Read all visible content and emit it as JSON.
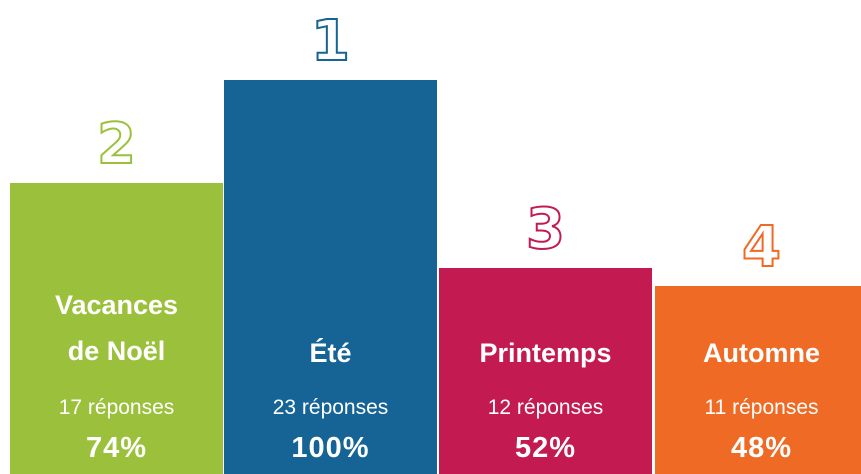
{
  "chart_data": {
    "type": "bar",
    "title": "",
    "categories": [
      "Vacances de Noël",
      "Été",
      "Printemps",
      "Automne"
    ],
    "labels": [
      "Vacances\nde Noël",
      "Été",
      "Printemps",
      "Automne"
    ],
    "values": [
      17,
      23,
      12,
      11
    ],
    "response_texts": [
      "17 réponses",
      "23 réponses",
      "12 réponses",
      "11 réponses"
    ],
    "percent_values": [
      74,
      100,
      52,
      48
    ],
    "percent_texts": [
      "74%",
      "100%",
      "52%",
      "48%"
    ],
    "ranks": [
      "2",
      "1",
      "3",
      "4"
    ],
    "colors": [
      "#9bc13c",
      "#156495",
      "#c21a51",
      "#ef6a24"
    ],
    "ylim": [
      0,
      23
    ],
    "xlabel": "",
    "ylabel": ""
  }
}
